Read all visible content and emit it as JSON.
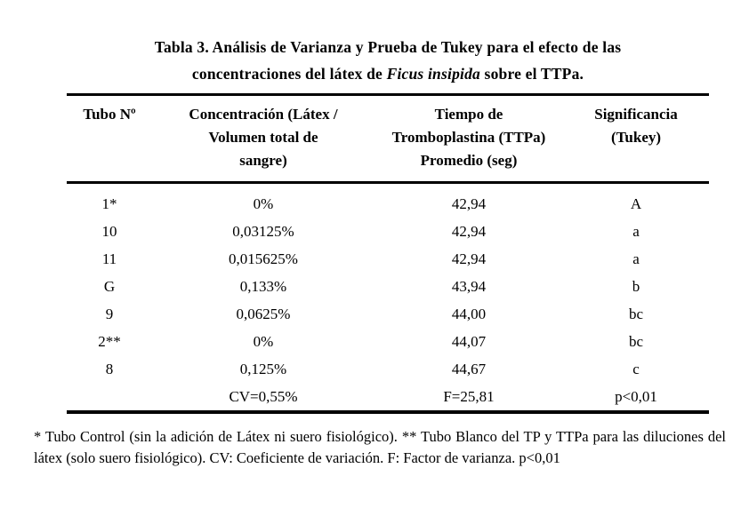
{
  "title": {
    "line1": "Tabla 3. Análisis de Varianza y Prueba de Tukey para el efecto de las",
    "line2_pre": "concentraciones del látex de ",
    "line2_italic": "Ficus insipida",
    "line2_post": " sobre el TTPa."
  },
  "table": {
    "columns": [
      {
        "label": "Tubo Nº",
        "lines": [
          "Tubo Nº"
        ]
      },
      {
        "label": "Concentración (Látex / Volumen total de sangre)",
        "lines": [
          "Concentración (Látex /",
          "Volumen total de",
          "sangre)"
        ]
      },
      {
        "label": "Tiempo de Tromboplastina (TTPa) Promedio (seg)",
        "lines": [
          "Tiempo de",
          "Tromboplastina (TTPa)",
          "Promedio (seg)"
        ]
      },
      {
        "label": "Significancia (Tukey)",
        "lines": [
          "Significancia",
          "(Tukey)"
        ]
      }
    ],
    "rows": [
      [
        "1*",
        "0%",
        "42,94",
        "A"
      ],
      [
        "10",
        "0,03125%",
        "42,94",
        "a"
      ],
      [
        "11",
        "0,015625%",
        "42,94",
        "a"
      ],
      [
        "G",
        "0,133%",
        "43,94",
        "b"
      ],
      [
        "9",
        "0,0625%",
        "44,00",
        "bc"
      ],
      [
        "2**",
        "0%",
        "44,07",
        "bc"
      ],
      [
        "8",
        "0,125%",
        "44,67",
        "c"
      ],
      [
        "",
        "CV=0,55%",
        "F=25,81",
        "p<0,01"
      ]
    ]
  },
  "footnote": "* Tubo Control (sin la adición de Látex ni suero fisiológico). ** Tubo Blanco del TP y TTPa para las diluciones del látex (solo suero fisiológico). CV: Coeficiente de variación. F: Factor de varianza. p<0,01",
  "colors": {
    "text": "#000000",
    "background": "#ffffff",
    "rule": "#000000"
  }
}
